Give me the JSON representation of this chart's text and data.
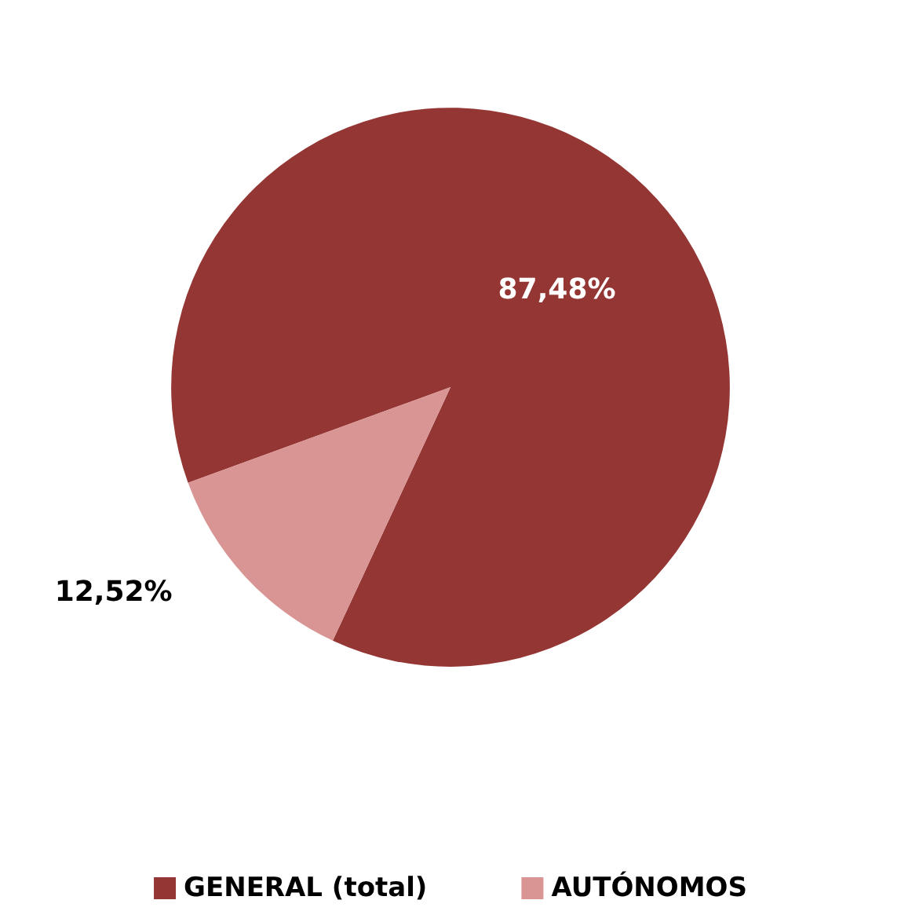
{
  "chart_data": {
    "type": "pie",
    "categories": [
      "GENERAL (total)",
      "AUTÓNOMOS"
    ],
    "values": [
      87.48,
      12.52
    ],
    "colors": [
      "#943634",
      "#d99594"
    ],
    "value_labels": [
      "87,48%",
      "12,52%"
    ],
    "legend": "bottom"
  }
}
